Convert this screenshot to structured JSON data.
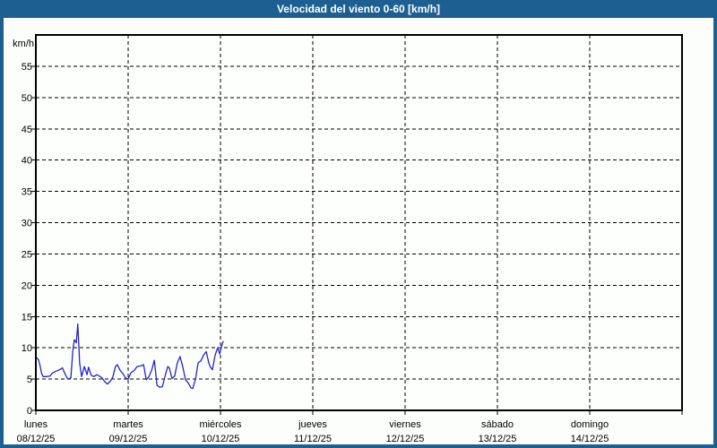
{
  "window": {
    "title": "Velocidad del viento 0-60 [km/h]"
  },
  "colors": {
    "titlebar_bg": "#1e5f91",
    "frame_border": "#1e5f91",
    "chart_bg": "#fcfefc",
    "plot_bg": "#fdfffd",
    "grid": "#000000",
    "axis_text": "#000000",
    "title_text": "#ffffff",
    "line": "#2424c8"
  },
  "chart_data": {
    "type": "line",
    "title": "Velocidad del viento 0-60 [km/h]",
    "ylabel": "km/h",
    "ylim": [
      0,
      60
    ],
    "ytick_step": 5,
    "y_tick_labels": [
      "0",
      "5",
      "10",
      "15",
      "20",
      "25",
      "30",
      "35",
      "40",
      "45",
      "50",
      "55"
    ],
    "grid": "dashed",
    "legend": "none",
    "x_axis": {
      "range_days": [
        0,
        7
      ],
      "days": [
        {
          "name": "lunes",
          "date": "08/12/25"
        },
        {
          "name": "martes",
          "date": "09/12/25"
        },
        {
          "name": "miércoles",
          "date": "10/12/25"
        },
        {
          "name": "jueves",
          "date": "11/12/25"
        },
        {
          "name": "viernes",
          "date": "12/12/25"
        },
        {
          "name": "sábado",
          "date": "13/12/25"
        },
        {
          "name": "domingo",
          "date": "14/12/25"
        }
      ]
    },
    "series": [
      {
        "name": "velocidad del viento",
        "color": "#2424c8",
        "x_unit": "hours_from_start",
        "points": [
          [
            0.0,
            8.5
          ],
          [
            0.7,
            8.1
          ],
          [
            1.1,
            7.1
          ],
          [
            1.5,
            5.9
          ],
          [
            1.9,
            5.4
          ],
          [
            2.8,
            5.4
          ],
          [
            3.7,
            5.5
          ],
          [
            4.2,
            5.9
          ],
          [
            5.0,
            6.2
          ],
          [
            5.8,
            6.4
          ],
          [
            6.5,
            6.6
          ],
          [
            6.9,
            6.8
          ],
          [
            7.7,
            5.7
          ],
          [
            8.1,
            5.2
          ],
          [
            8.5,
            5.0
          ],
          [
            9.1,
            5.2
          ],
          [
            9.6,
            9.5
          ],
          [
            10.0,
            11.3
          ],
          [
            10.5,
            10.8
          ],
          [
            10.9,
            13.8
          ],
          [
            11.4,
            7.5
          ],
          [
            11.9,
            5.4
          ],
          [
            12.6,
            7.0
          ],
          [
            13.3,
            5.7
          ],
          [
            13.7,
            6.9
          ],
          [
            14.4,
            5.6
          ],
          [
            15.1,
            5.4
          ],
          [
            15.8,
            5.7
          ],
          [
            16.5,
            5.5
          ],
          [
            17.2,
            5.2
          ],
          [
            17.9,
            4.6
          ],
          [
            18.6,
            4.2
          ],
          [
            19.3,
            4.6
          ],
          [
            20.0,
            5.3
          ],
          [
            20.7,
            7.0
          ],
          [
            21.2,
            7.3
          ],
          [
            21.9,
            6.4
          ],
          [
            22.6,
            5.9
          ],
          [
            23.3,
            5.2
          ],
          [
            24.0,
            5.0
          ],
          [
            24.7,
            6.0
          ],
          [
            25.6,
            6.4
          ],
          [
            26.3,
            7.0
          ],
          [
            27.3,
            7.1
          ],
          [
            28.0,
            7.3
          ],
          [
            28.7,
            4.9
          ],
          [
            29.4,
            5.4
          ],
          [
            30.1,
            6.4
          ],
          [
            30.8,
            8.0
          ],
          [
            31.5,
            4.0
          ],
          [
            32.2,
            3.7
          ],
          [
            32.9,
            3.8
          ],
          [
            33.6,
            5.5
          ],
          [
            34.3,
            7.0
          ],
          [
            34.7,
            6.8
          ],
          [
            35.4,
            5.1
          ],
          [
            36.1,
            5.5
          ],
          [
            36.8,
            7.6
          ],
          [
            37.5,
            8.6
          ],
          [
            38.2,
            7.0
          ],
          [
            38.9,
            4.9
          ],
          [
            39.6,
            4.4
          ],
          [
            40.3,
            3.6
          ],
          [
            40.8,
            3.5
          ],
          [
            41.5,
            5.0
          ],
          [
            42.2,
            7.6
          ],
          [
            42.9,
            7.9
          ],
          [
            43.6,
            8.8
          ],
          [
            44.3,
            9.4
          ],
          [
            45.0,
            7.5
          ],
          [
            45.4,
            6.9
          ],
          [
            45.9,
            6.5
          ],
          [
            46.6,
            8.8
          ],
          [
            47.1,
            9.7
          ],
          [
            47.3,
            10.0
          ],
          [
            47.8,
            9.0
          ],
          [
            48.5,
            10.7
          ],
          [
            48.7,
            11.0
          ]
        ]
      }
    ]
  }
}
